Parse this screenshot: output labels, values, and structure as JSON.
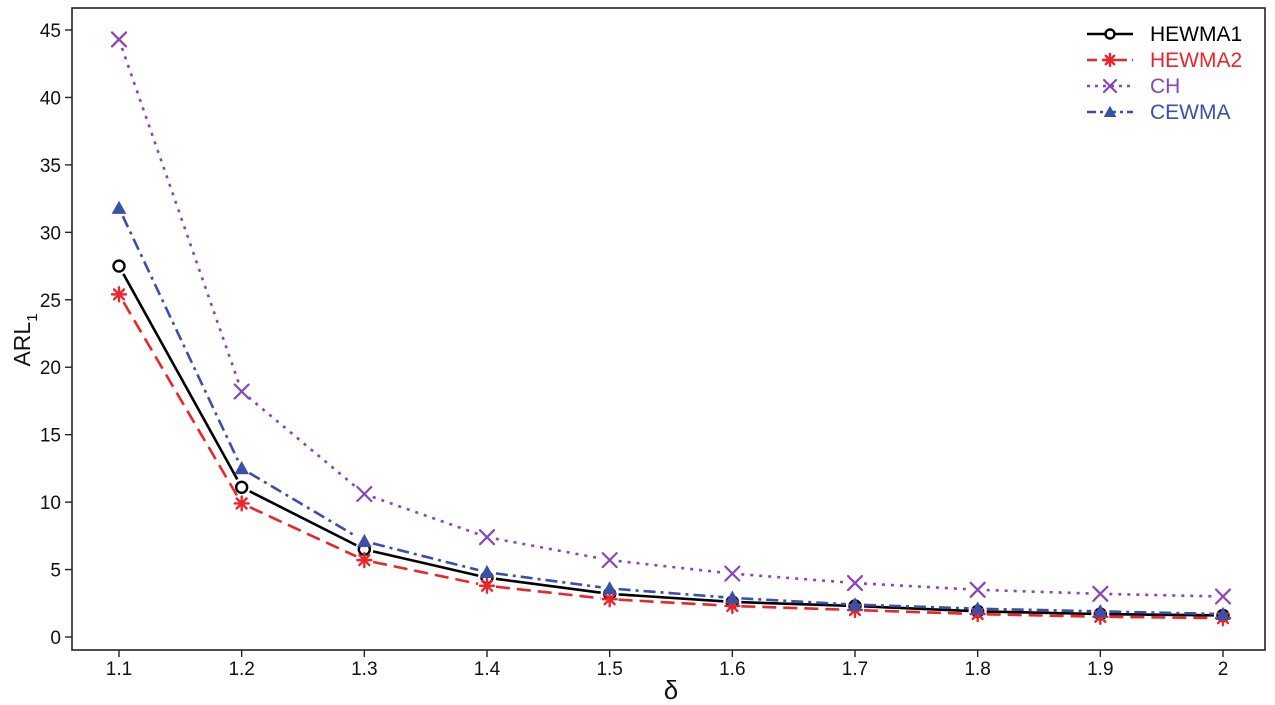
{
  "chart_data": {
    "type": "line",
    "x": [
      1.1,
      1.2,
      1.3,
      1.4,
      1.5,
      1.6,
      1.7,
      1.8,
      1.9,
      2
    ],
    "x_tick_labels": [
      "1.1",
      "1.2",
      "1.3",
      "1.4",
      "1.5",
      "1.6",
      "1.7",
      "1.8",
      "1.9",
      "2"
    ],
    "y_ticks": [
      0,
      5,
      10,
      15,
      20,
      25,
      30,
      35,
      40,
      45
    ],
    "y_tick_labels": [
      "0",
      "5",
      "10",
      "15",
      "20",
      "25",
      "30",
      "35",
      "40",
      "45"
    ],
    "xlabel": "δ",
    "ylabel": {
      "main": "ARL",
      "sub": "1"
    },
    "xlim": [
      1.1,
      2
    ],
    "ylim": [
      0,
      45
    ],
    "grid": false,
    "legend_position": "top-right",
    "series": [
      {
        "name": "HEWMA1",
        "color": "#000000",
        "line_style": "solid",
        "marker": "open-circle",
        "values": [
          27.5,
          11.1,
          6.5,
          4.4,
          3.2,
          2.6,
          2.3,
          1.9,
          1.7,
          1.6
        ]
      },
      {
        "name": "HEWMA2",
        "color": "#e8262b",
        "line_style": "dashed",
        "marker": "asterisk",
        "values": [
          25.4,
          9.9,
          5.7,
          3.8,
          2.8,
          2.3,
          2.0,
          1.7,
          1.5,
          1.4
        ]
      },
      {
        "name": "CH",
        "color": "#8a44b8",
        "line_style": "dotted",
        "marker": "x",
        "values": [
          44.3,
          18.2,
          10.6,
          7.4,
          5.7,
          4.7,
          4.0,
          3.5,
          3.2,
          3.0
        ]
      },
      {
        "name": "CEWMA",
        "color": "#3a50a8",
        "line_style": "dash-dot",
        "marker": "filled-triangle",
        "values": [
          31.8,
          12.5,
          7.1,
          4.8,
          3.6,
          2.9,
          2.4,
          2.1,
          1.9,
          1.7
        ]
      }
    ]
  }
}
